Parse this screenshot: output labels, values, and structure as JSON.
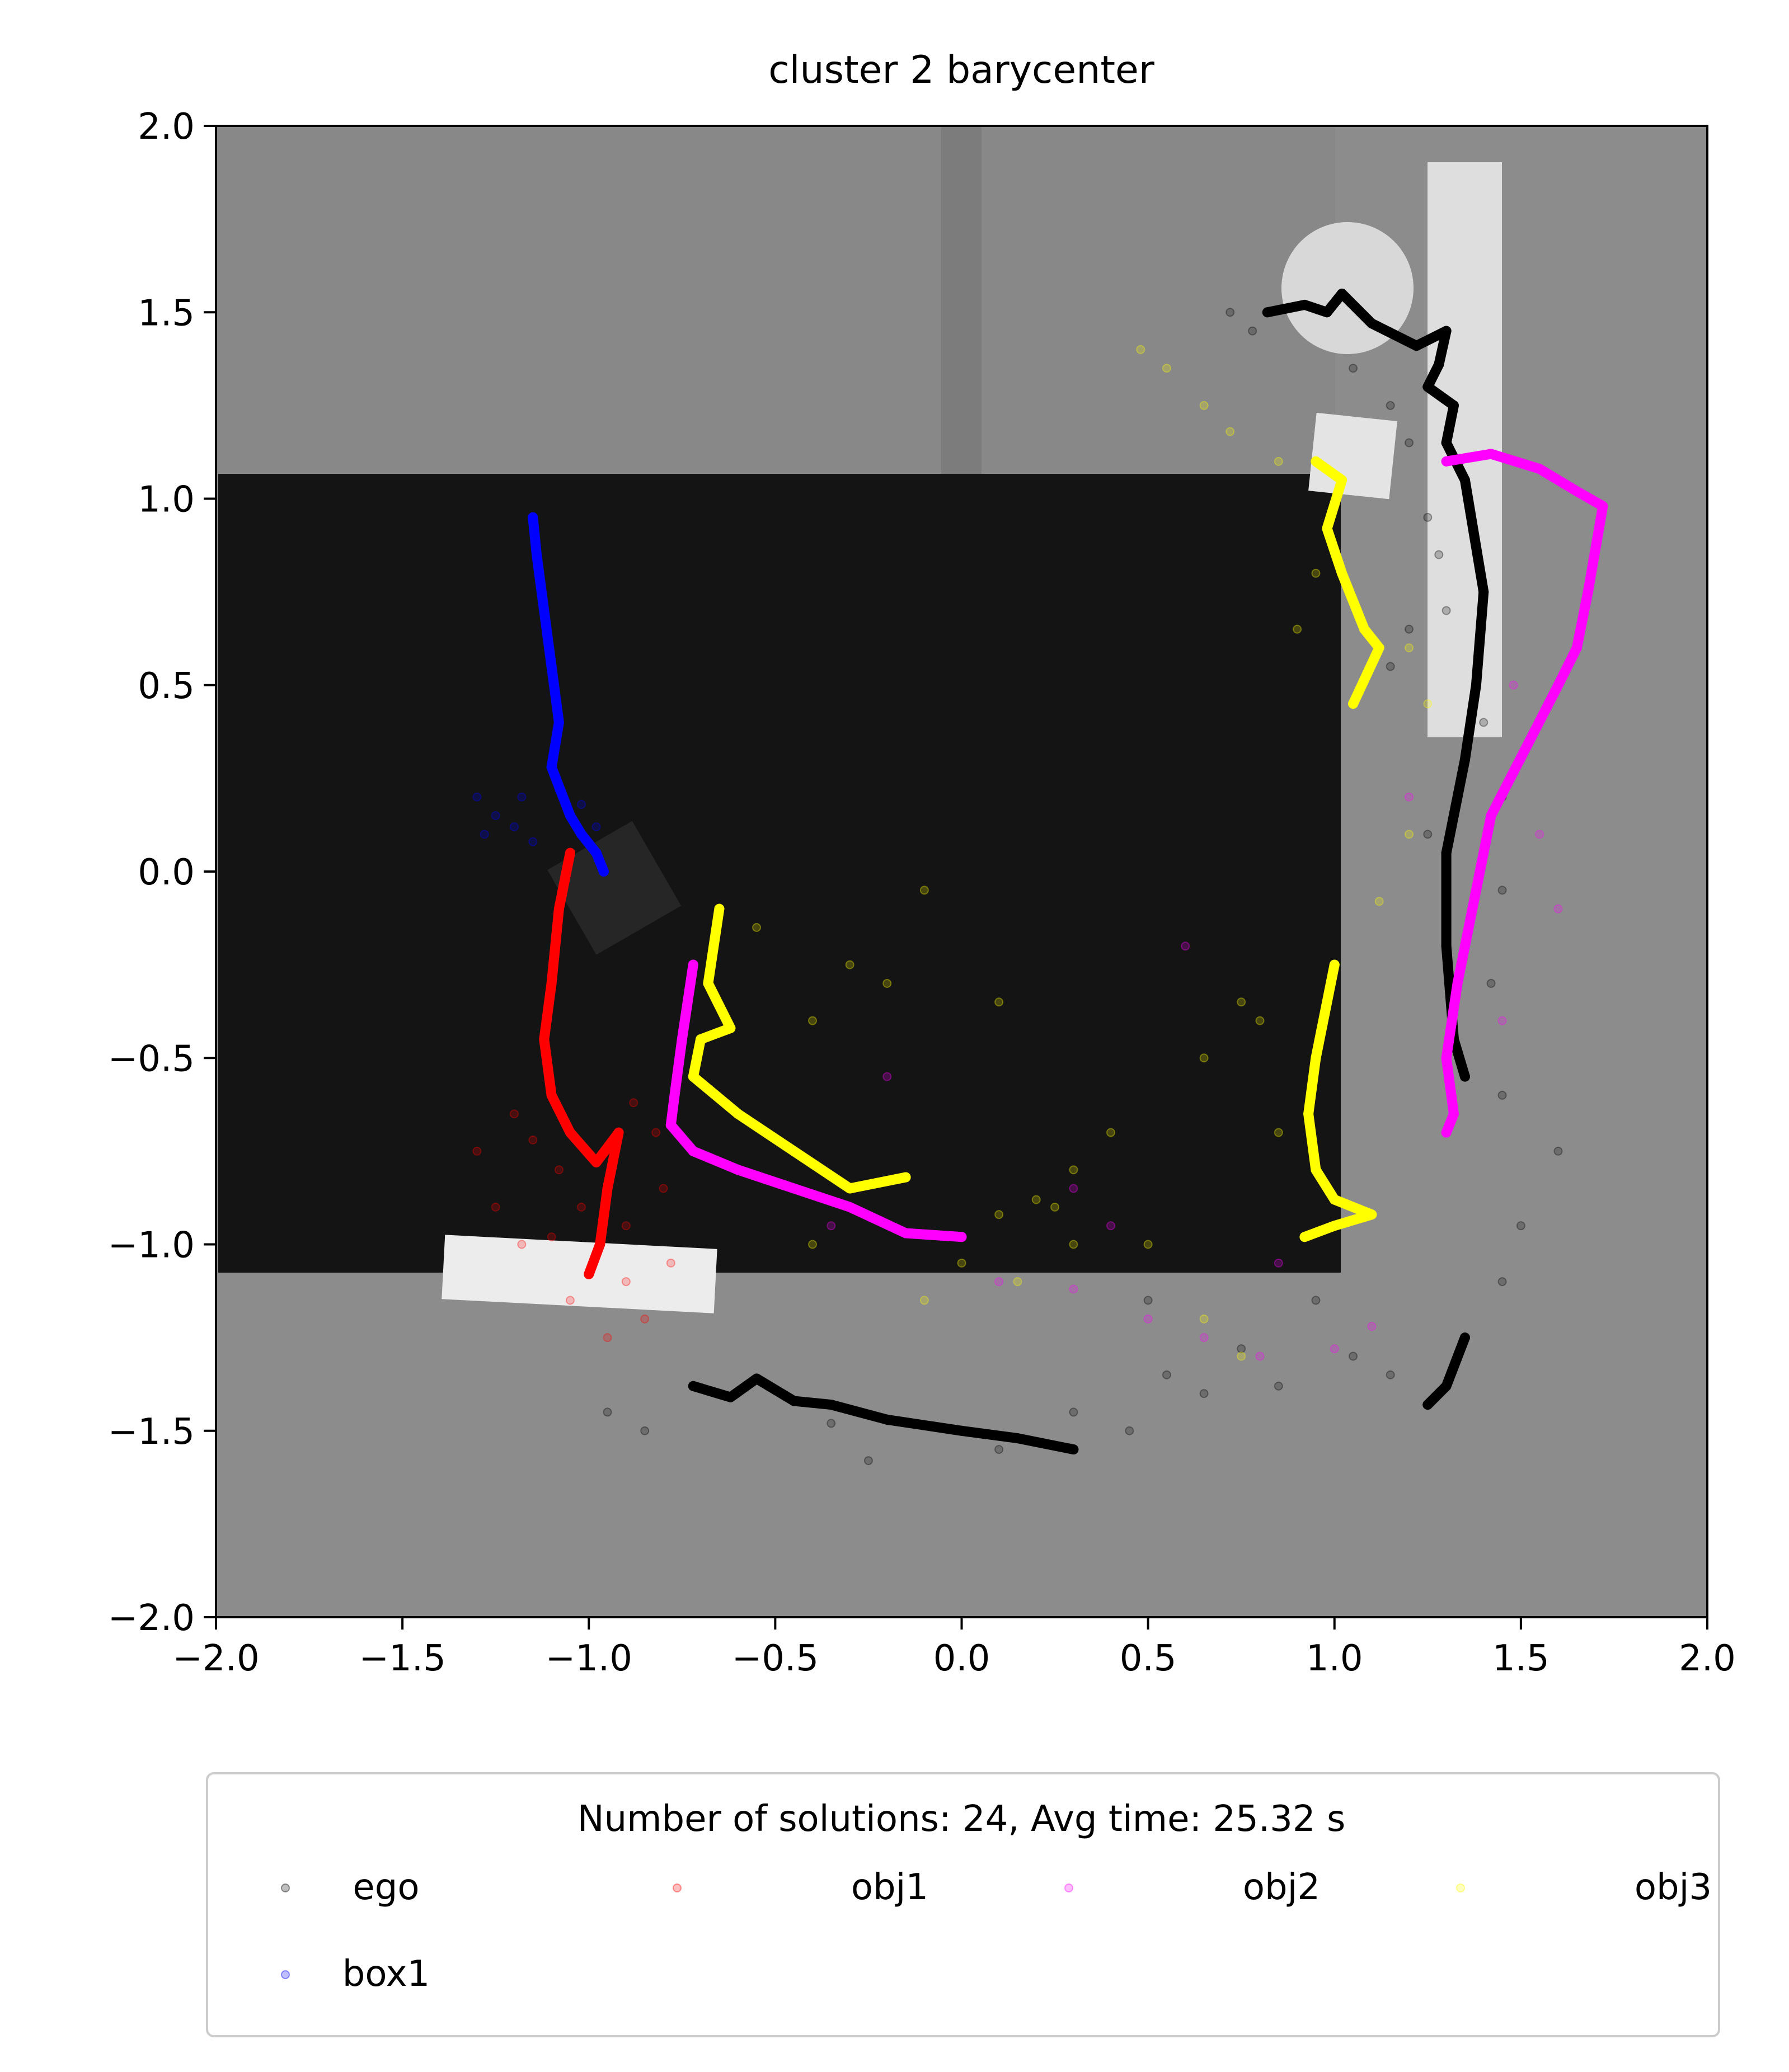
{
  "chart_data": {
    "type": "scatter",
    "title": "cluster 2 barycenter",
    "xlabel": "",
    "ylabel": "",
    "xlim": [
      -2.0,
      2.0
    ],
    "ylim": [
      -2.0,
      2.0
    ],
    "xticks": [
      "−2.0",
      "−1.5",
      "−1.0",
      "−0.5",
      "0.0",
      "0.5",
      "1.0",
      "1.5",
      "2.0"
    ],
    "yticks": [
      "−2.0",
      "−1.5",
      "−1.0",
      "−0.5",
      "0.0",
      "0.5",
      "1.0",
      "1.5",
      "2.0"
    ],
    "grid": false,
    "background": "top-down scene render: grey floor, black table, white boxes",
    "legend": {
      "title": "Number of solutions: 24, Avg time: 25.32 s",
      "placement": "below plot",
      "columns": 4,
      "entries": [
        "ego",
        "obj1",
        "obj2",
        "obj3",
        "box1"
      ]
    },
    "series": [
      {
        "name": "ego",
        "color": "#000000",
        "barycenter": [
          [
            -0.72,
            -1.38
          ],
          [
            -0.62,
            -1.41
          ],
          [
            -0.55,
            -1.36
          ],
          [
            -0.45,
            -1.42
          ],
          [
            -0.35,
            -1.43
          ],
          [
            -0.2,
            -1.47
          ],
          [
            0.0,
            -1.5
          ],
          [
            0.15,
            -1.52
          ],
          [
            0.3,
            -1.55
          ],
          [
            1.25,
            -1.43
          ],
          [
            1.3,
            -1.38
          ],
          [
            1.35,
            -1.25
          ],
          [
            0.82,
            1.5
          ],
          [
            0.92,
            1.52
          ],
          [
            0.98,
            1.5
          ],
          [
            1.02,
            1.55
          ],
          [
            1.1,
            1.47
          ],
          [
            1.22,
            1.41
          ],
          [
            1.3,
            1.45
          ],
          [
            1.28,
            1.36
          ],
          [
            1.25,
            1.3
          ],
          [
            1.32,
            1.25
          ],
          [
            1.3,
            1.15
          ],
          [
            1.35,
            1.05
          ],
          [
            1.4,
            0.75
          ],
          [
            1.38,
            0.5
          ],
          [
            1.35,
            0.3
          ],
          [
            1.3,
            0.05
          ],
          [
            1.3,
            -0.2
          ],
          [
            1.32,
            -0.45
          ],
          [
            1.35,
            -0.55
          ]
        ],
        "samples": [
          [
            0.72,
            1.5
          ],
          [
            0.78,
            1.45
          ],
          [
            1.05,
            1.35
          ],
          [
            1.15,
            1.25
          ],
          [
            1.2,
            1.15
          ],
          [
            1.25,
            0.95
          ],
          [
            1.28,
            0.85
          ],
          [
            1.3,
            0.7
          ],
          [
            1.2,
            0.65
          ],
          [
            1.15,
            0.55
          ],
          [
            1.4,
            0.4
          ],
          [
            1.45,
            0.2
          ],
          [
            1.25,
            0.1
          ],
          [
            1.45,
            -0.05
          ],
          [
            1.42,
            -0.3
          ],
          [
            1.3,
            -0.5
          ],
          [
            1.45,
            -0.6
          ],
          [
            1.6,
            -0.75
          ],
          [
            1.5,
            -0.95
          ],
          [
            1.45,
            -1.1
          ],
          [
            0.95,
            -1.15
          ],
          [
            1.05,
            -1.3
          ],
          [
            0.85,
            -1.38
          ],
          [
            0.55,
            -1.35
          ],
          [
            0.3,
            -1.45
          ],
          [
            0.1,
            -1.55
          ],
          [
            0.45,
            -1.5
          ],
          [
            0.65,
            -1.4
          ],
          [
            -0.35,
            -1.48
          ],
          [
            -0.25,
            -1.58
          ],
          [
            -0.85,
            -1.5
          ],
          [
            -0.95,
            -1.45
          ],
          [
            0.5,
            -1.15
          ],
          [
            0.75,
            -1.28
          ],
          [
            1.15,
            -1.35
          ]
        ]
      },
      {
        "name": "obj1",
        "color": "#ff0000",
        "barycenter": [
          [
            -1.05,
            0.05
          ],
          [
            -1.08,
            -0.1
          ],
          [
            -1.1,
            -0.3
          ],
          [
            -1.12,
            -0.45
          ],
          [
            -1.1,
            -0.6
          ],
          [
            -1.05,
            -0.7
          ],
          [
            -0.98,
            -0.78
          ],
          [
            -0.92,
            -0.7
          ],
          [
            -0.95,
            -0.85
          ],
          [
            -0.97,
            -1.0
          ],
          [
            -1.0,
            -1.08
          ]
        ],
        "samples": [
          [
            -1.2,
            -0.65
          ],
          [
            -1.15,
            -0.72
          ],
          [
            -1.08,
            -0.8
          ],
          [
            -1.02,
            -0.9
          ],
          [
            -1.1,
            -0.98
          ],
          [
            -1.18,
            -1.0
          ],
          [
            -0.88,
            -0.62
          ],
          [
            -0.82,
            -0.7
          ],
          [
            -0.8,
            -0.85
          ],
          [
            -0.9,
            -0.95
          ],
          [
            -1.05,
            -1.15
          ],
          [
            -0.9,
            -1.1
          ],
          [
            -0.85,
            -1.2
          ],
          [
            -0.78,
            -1.05
          ],
          [
            -1.25,
            -0.9
          ],
          [
            -1.3,
            -0.75
          ],
          [
            -0.95,
            -1.25
          ]
        ]
      },
      {
        "name": "obj2",
        "color": "#ff00ff",
        "barycenter": [
          [
            -0.72,
            -0.25
          ],
          [
            -0.75,
            -0.45
          ],
          [
            -0.77,
            -0.6
          ],
          [
            -0.78,
            -0.68
          ],
          [
            -0.72,
            -0.75
          ],
          [
            -0.6,
            -0.8
          ],
          [
            -0.45,
            -0.85
          ],
          [
            -0.3,
            -0.9
          ],
          [
            -0.15,
            -0.97
          ],
          [
            0.0,
            -0.98
          ],
          [
            1.3,
            1.1
          ],
          [
            1.42,
            1.12
          ],
          [
            1.55,
            1.08
          ],
          [
            1.65,
            1.02
          ],
          [
            1.72,
            0.98
          ],
          [
            1.68,
            0.75
          ],
          [
            1.65,
            0.6
          ],
          [
            1.6,
            0.5
          ],
          [
            1.42,
            0.15
          ],
          [
            1.38,
            -0.05
          ],
          [
            1.33,
            -0.3
          ],
          [
            1.3,
            -0.5
          ],
          [
            1.32,
            -0.65
          ],
          [
            1.3,
            -0.7
          ]
        ],
        "samples": [
          [
            0.1,
            -1.1
          ],
          [
            0.3,
            -1.12
          ],
          [
            0.5,
            -1.2
          ],
          [
            0.65,
            -1.25
          ],
          [
            0.8,
            -1.3
          ],
          [
            1.0,
            -1.28
          ],
          [
            1.1,
            -1.22
          ],
          [
            -0.2,
            -0.55
          ],
          [
            0.3,
            -0.85
          ],
          [
            0.6,
            -0.2
          ],
          [
            1.5,
            0.3
          ],
          [
            1.55,
            0.1
          ],
          [
            1.6,
            -0.1
          ],
          [
            1.45,
            -0.4
          ],
          [
            1.48,
            0.5
          ],
          [
            1.2,
            0.2
          ],
          [
            0.85,
            -1.05
          ],
          [
            -0.35,
            -0.95
          ],
          [
            0.4,
            -0.95
          ]
        ]
      },
      {
        "name": "obj3",
        "color": "#ffff00",
        "barycenter": [
          [
            -0.65,
            -0.1
          ],
          [
            -0.68,
            -0.3
          ],
          [
            -0.62,
            -0.42
          ],
          [
            -0.7,
            -0.45
          ],
          [
            -0.72,
            -0.55
          ],
          [
            -0.6,
            -0.65
          ],
          [
            -0.45,
            -0.75
          ],
          [
            -0.3,
            -0.85
          ],
          [
            -0.15,
            -0.82
          ],
          [
            0.95,
            1.1
          ],
          [
            1.02,
            1.05
          ],
          [
            0.98,
            0.92
          ],
          [
            1.02,
            0.8
          ],
          [
            1.08,
            0.65
          ],
          [
            1.12,
            0.6
          ],
          [
            1.05,
            0.45
          ],
          [
            1.0,
            -0.25
          ],
          [
            0.95,
            -0.5
          ],
          [
            0.93,
            -0.65
          ],
          [
            0.95,
            -0.8
          ],
          [
            1.0,
            -0.88
          ],
          [
            1.1,
            -0.92
          ],
          [
            1.0,
            -0.95
          ],
          [
            0.92,
            -0.98
          ]
        ],
        "samples": [
          [
            0.48,
            1.4
          ],
          [
            0.55,
            1.35
          ],
          [
            0.65,
            1.25
          ],
          [
            0.72,
            1.18
          ],
          [
            0.85,
            1.1
          ],
          [
            0.95,
            0.8
          ],
          [
            0.9,
            0.65
          ],
          [
            1.2,
            0.6
          ],
          [
            1.25,
            0.45
          ],
          [
            1.2,
            0.1
          ],
          [
            1.12,
            -0.08
          ],
          [
            0.75,
            -0.35
          ],
          [
            0.8,
            -0.4
          ],
          [
            0.65,
            -0.5
          ],
          [
            0.4,
            -0.7
          ],
          [
            0.3,
            -0.8
          ],
          [
            0.2,
            -0.88
          ],
          [
            0.1,
            -0.92
          ],
          [
            0.0,
            -1.05
          ],
          [
            0.15,
            -1.1
          ],
          [
            -0.1,
            -1.15
          ],
          [
            0.3,
            -1.0
          ],
          [
            0.5,
            -1.0
          ],
          [
            0.65,
            -1.2
          ],
          [
            0.75,
            -1.3
          ],
          [
            -0.4,
            -0.4
          ],
          [
            -0.3,
            -0.25
          ],
          [
            -0.1,
            -0.05
          ],
          [
            -0.2,
            -0.3
          ],
          [
            0.1,
            -0.35
          ],
          [
            -0.4,
            -1.0
          ],
          [
            -0.55,
            -0.15
          ],
          [
            0.25,
            -0.9
          ],
          [
            0.85,
            -0.7
          ]
        ]
      },
      {
        "name": "box1",
        "color": "#0000ff",
        "barycenter": [
          [
            -1.15,
            0.95
          ],
          [
            -1.14,
            0.85
          ],
          [
            -1.12,
            0.7
          ],
          [
            -1.1,
            0.55
          ],
          [
            -1.08,
            0.4
          ],
          [
            -1.1,
            0.28
          ],
          [
            -1.05,
            0.15
          ],
          [
            -1.02,
            0.1
          ],
          [
            -0.98,
            0.05
          ],
          [
            -0.96,
            0.0
          ]
        ],
        "samples": [
          [
            -1.3,
            0.2
          ],
          [
            -1.25,
            0.15
          ],
          [
            -1.2,
            0.12
          ],
          [
            -1.18,
            0.2
          ],
          [
            -1.08,
            0.22
          ],
          [
            -1.02,
            0.18
          ],
          [
            -0.98,
            0.12
          ],
          [
            -1.28,
            0.1
          ],
          [
            -1.15,
            0.08
          ]
        ]
      }
    ]
  }
}
